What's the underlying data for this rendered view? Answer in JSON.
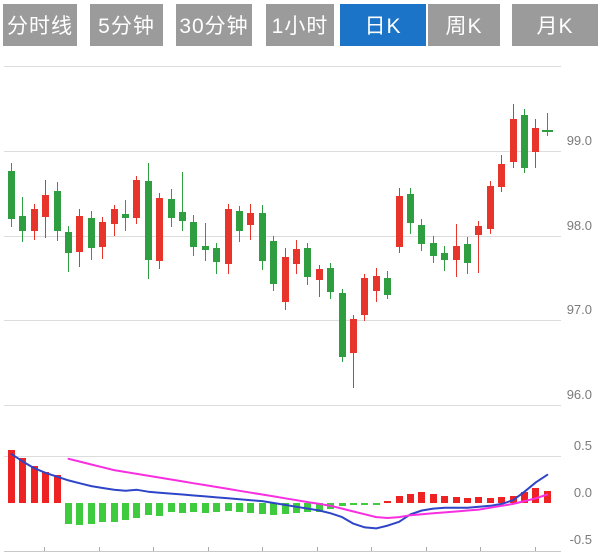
{
  "tabs": [
    {
      "label": "分时线",
      "active": false
    },
    {
      "label": "5分钟",
      "active": false
    },
    {
      "label": "30分钟",
      "active": false
    },
    {
      "label": "1小时",
      "active": false
    },
    {
      "label": "日K",
      "active": true
    },
    {
      "label": "周K",
      "active": false
    },
    {
      "label": "月K",
      "active": false
    }
  ],
  "colors": {
    "tab_bg": "#9b9b9b",
    "tab_active_bg": "#1b74c8",
    "tab_text": "#ffffff",
    "candle_up": "#e8352c",
    "candle_down": "#2f9e41",
    "macd_bar_up": "#ee2222",
    "macd_bar_down": "#3ecb3e",
    "dif_line": "#2e45c8",
    "dea_line": "#f92ee0",
    "grid": "#dcdcdc",
    "axis": "#c8c8c8",
    "tick": "#aaaaaa",
    "label_text": "#7b7b7b"
  },
  "chart_data": [
    {
      "type": "candlestick",
      "pane": "price",
      "title": "",
      "convention": "red-up-green-down",
      "y_axis": {
        "side": "right",
        "tick_labels": [
          "99.0",
          "98.0",
          "97.0",
          "96.0"
        ],
        "tick_values": [
          99.0,
          98.0,
          97.0,
          96.0
        ],
        "grid_values": [
          100.0,
          99.0,
          98.0,
          97.0,
          96.0
        ]
      },
      "candles_ohlc": [
        [
          98.76,
          98.86,
          98.1,
          98.2
        ],
        [
          98.23,
          98.46,
          97.93,
          98.06
        ],
        [
          98.06,
          98.38,
          97.95,
          98.31
        ],
        [
          98.22,
          98.66,
          97.97,
          98.48
        ],
        [
          98.53,
          98.64,
          97.94,
          98.05
        ],
        [
          98.04,
          98.11,
          97.57,
          97.79
        ],
        [
          97.81,
          98.32,
          97.63,
          98.23
        ],
        [
          98.21,
          98.29,
          97.71,
          97.85
        ],
        [
          97.87,
          98.22,
          97.73,
          98.16
        ],
        [
          98.14,
          98.36,
          98.0,
          98.31
        ],
        [
          98.26,
          98.42,
          98.06,
          98.21
        ],
        [
          98.21,
          98.71,
          98.14,
          98.66
        ],
        [
          98.65,
          98.86,
          97.49,
          97.71
        ],
        [
          97.7,
          98.5,
          97.6,
          98.44
        ],
        [
          98.43,
          98.55,
          98.1,
          98.21
        ],
        [
          98.28,
          98.75,
          98.05,
          98.17
        ],
        [
          98.16,
          98.25,
          97.76,
          97.86
        ],
        [
          97.88,
          98.15,
          97.7,
          97.83
        ],
        [
          97.85,
          97.92,
          97.55,
          97.69
        ],
        [
          97.66,
          98.38,
          97.55,
          98.31
        ],
        [
          98.29,
          98.35,
          97.92,
          98.06
        ],
        [
          98.12,
          98.38,
          97.95,
          98.27
        ],
        [
          98.27,
          98.36,
          97.6,
          97.7
        ],
        [
          97.94,
          98.0,
          97.35,
          97.43
        ],
        [
          97.22,
          97.85,
          97.12,
          97.75
        ],
        [
          97.66,
          97.95,
          97.55,
          97.84
        ],
        [
          97.86,
          97.92,
          97.42,
          97.51
        ],
        [
          97.48,
          97.66,
          97.28,
          97.61
        ],
        [
          97.62,
          97.68,
          97.25,
          97.33
        ],
        [
          97.32,
          97.37,
          96.51,
          96.57
        ],
        [
          96.61,
          97.06,
          96.2,
          97.02
        ],
        [
          97.06,
          97.55,
          96.99,
          97.5
        ],
        [
          97.35,
          97.62,
          97.22,
          97.53
        ],
        [
          97.5,
          97.58,
          97.25,
          97.3
        ],
        [
          97.87,
          98.56,
          97.8,
          98.47
        ],
        [
          98.49,
          98.56,
          98.02,
          98.15
        ],
        [
          98.13,
          98.2,
          97.82,
          97.9
        ],
        [
          97.92,
          98.0,
          97.68,
          97.76
        ],
        [
          97.8,
          97.88,
          97.58,
          97.71
        ],
        [
          97.71,
          98.14,
          97.51,
          97.88
        ],
        [
          97.9,
          97.98,
          97.55,
          97.68
        ],
        [
          98.01,
          98.17,
          97.56,
          98.11
        ],
        [
          98.08,
          98.65,
          98.02,
          98.59
        ],
        [
          98.57,
          98.95,
          98.51,
          98.85
        ],
        [
          98.87,
          99.56,
          98.8,
          99.38
        ],
        [
          99.42,
          99.5,
          98.74,
          98.8
        ],
        [
          98.99,
          99.38,
          98.8,
          99.27
        ],
        [
          99.24,
          99.45,
          99.18,
          99.22
        ]
      ]
    },
    {
      "type": "bar",
      "pane": "macd",
      "title": "",
      "y_axis": {
        "side": "right",
        "tick_labels": [
          "0.5",
          "0.0",
          "-0.5"
        ],
        "tick_values": [
          0.5,
          0.0,
          -0.5
        ],
        "grid_values": [
          0.5
        ]
      },
      "histogram": [
        0.56,
        0.48,
        0.39,
        0.33,
        0.3,
        -0.22,
        -0.23,
        -0.22,
        -0.2,
        -0.2,
        -0.18,
        -0.16,
        -0.13,
        -0.14,
        -0.1,
        -0.11,
        -0.1,
        -0.11,
        -0.09,
        -0.08,
        -0.09,
        -0.11,
        -0.12,
        -0.13,
        -0.12,
        -0.11,
        -0.1,
        -0.09,
        -0.06,
        -0.03,
        -0.02,
        -0.01,
        -0.01,
        0.02,
        0.08,
        0.1,
        0.12,
        0.1,
        0.08,
        0.06,
        0.05,
        0.06,
        0.05,
        0.06,
        0.08,
        0.12,
        0.16,
        0.13
      ],
      "series": [
        {
          "name": "DIF",
          "color_key": "dif_line",
          "values": [
            0.52,
            0.44,
            0.37,
            0.32,
            0.28,
            0.24,
            0.21,
            0.18,
            0.16,
            0.14,
            0.13,
            0.14,
            0.12,
            0.11,
            0.1,
            0.09,
            0.08,
            0.07,
            0.06,
            0.05,
            0.04,
            0.03,
            0.02,
            0.0,
            -0.02,
            -0.04,
            -0.06,
            -0.08,
            -0.11,
            -0.15,
            -0.22,
            -0.26,
            -0.27,
            -0.24,
            -0.2,
            -0.12,
            -0.08,
            -0.06,
            -0.05,
            -0.05,
            -0.05,
            -0.04,
            -0.03,
            -0.01,
            0.03,
            0.12,
            0.22,
            0.3
          ]
        },
        {
          "name": "DEA",
          "color_key": "dea_line",
          "values": [
            null,
            null,
            null,
            null,
            null,
            0.47,
            0.44,
            0.41,
            0.38,
            0.35,
            0.33,
            0.31,
            0.29,
            0.27,
            0.25,
            0.23,
            0.21,
            0.19,
            0.17,
            0.15,
            0.13,
            0.11,
            0.09,
            0.07,
            0.05,
            0.03,
            0.01,
            -0.01,
            -0.03,
            -0.06,
            -0.09,
            -0.12,
            -0.15,
            -0.16,
            -0.15,
            -0.13,
            -0.12,
            -0.11,
            -0.1,
            -0.09,
            -0.08,
            -0.07,
            -0.05,
            -0.03,
            -0.01,
            0.02,
            0.05,
            0.09
          ]
        }
      ]
    }
  ]
}
